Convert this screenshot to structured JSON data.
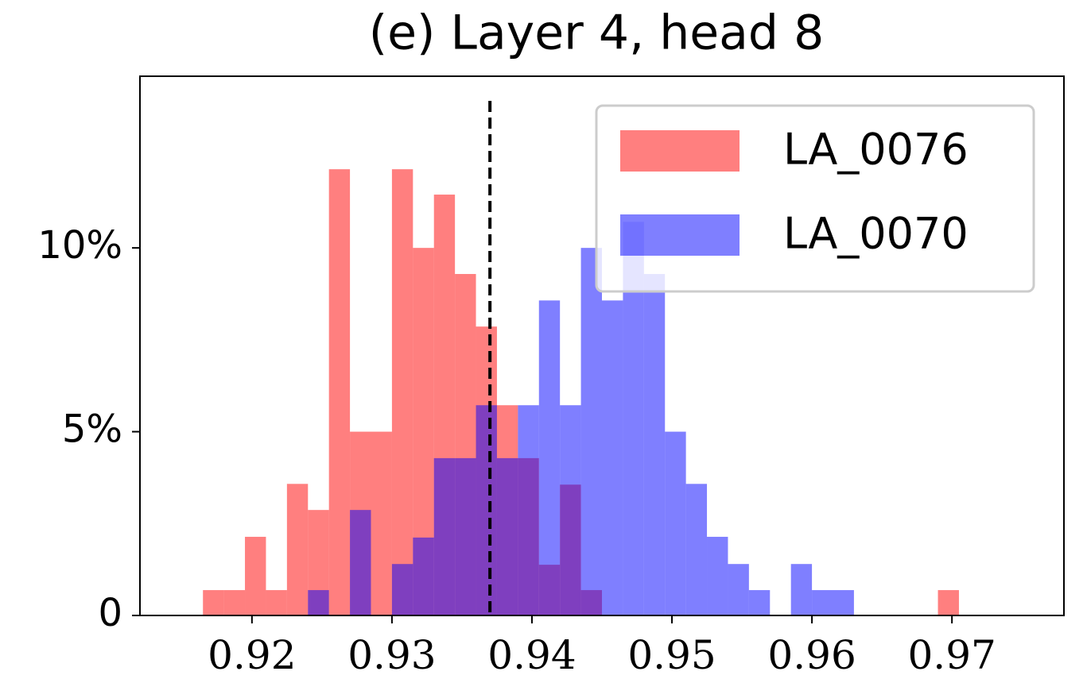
{
  "chart_data": {
    "type": "histogram",
    "title": "(e) Layer 4, head 8",
    "bins": [
      0.9165,
      0.918,
      0.9195,
      0.921,
      0.9225,
      0.924,
      0.9255,
      0.927,
      0.9285,
      0.93,
      0.9315,
      0.933,
      0.9345,
      0.936,
      0.9375,
      0.939,
      0.9405,
      0.942,
      0.9435,
      0.945,
      0.9465,
      0.948,
      0.9495,
      0.951,
      0.9525,
      0.954,
      0.9555,
      0.957,
      0.9585,
      0.96,
      0.9615,
      0.963,
      0.9645,
      0.966,
      0.9675,
      0.969,
      0.9705
    ],
    "series": [
      {
        "name": "LA_0076",
        "color": "#ff0000",
        "values": [
          0.69,
          0.69,
          2.14,
          0.69,
          3.58,
          2.87,
          12.14,
          5,
          5,
          12.14,
          10,
          11.45,
          9.29,
          7.86,
          5.72,
          4.28,
          1.38,
          3.56,
          0.69,
          0,
          0,
          0,
          0,
          0,
          0,
          0,
          0,
          0,
          0,
          0,
          0,
          0,
          0,
          0,
          0,
          0.69
        ]
      },
      {
        "name": "LA_0070",
        "color": "#0000ff",
        "values": [
          0,
          0,
          0,
          0,
          0,
          0.69,
          0,
          2.87,
          0,
          1.4,
          2.12,
          4.28,
          4.28,
          5.72,
          4.28,
          5.72,
          8.57,
          5.72,
          10,
          8.57,
          10.71,
          9.29,
          5,
          3.58,
          2.14,
          1.4,
          0.69,
          0,
          1.4,
          0.69,
          0.69,
          0,
          0,
          0,
          0,
          0
        ]
      }
    ],
    "alpha": 0.5,
    "vline": 0.937,
    "xlim": [
      0.912,
      0.978
    ],
    "xticks": [
      0.92,
      0.93,
      0.94,
      0.95,
      0.96,
      0.97
    ],
    "ylim": [
      0,
      14.67
    ],
    "yticks": [
      0,
      {
        "value": 5,
        "label": "5%"
      },
      {
        "value": 10,
        "label": "10%"
      }
    ],
    "legend": "upper right"
  }
}
